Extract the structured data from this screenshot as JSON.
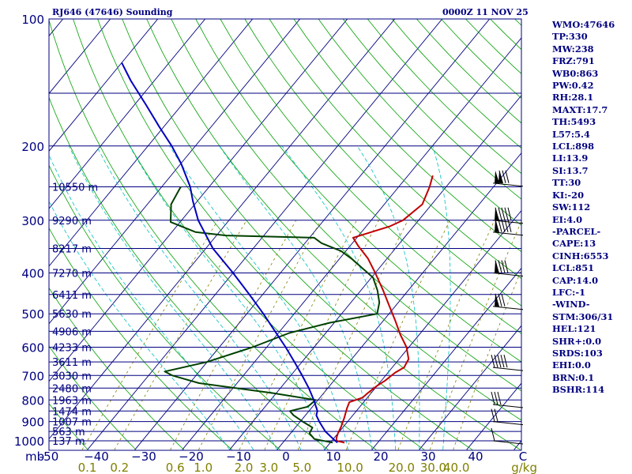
{
  "header": {
    "station": "RJ646 (47646) Sounding",
    "valid_time": "0000Z 11 NOV 25"
  },
  "indices": [
    "WMO:47646",
    "TP:330",
    "MW:238",
    "FRZ:791",
    "WB0:863",
    "PW:0.42",
    "RH:28.1",
    "MAXT:17.7",
    "TH:5493",
    "L57:5.4",
    "LCL:898",
    "LI:13.9",
    "SI:13.7",
    "TT:30",
    "KI:-20",
    "SW:112",
    "EI:4.0",
    "-PARCEL-",
    "CAPE:13",
    "CINH:6553",
    "LCL:851",
    "CAP:14.0",
    "LFC:-1",
    "-WIND-",
    "STM:306/31",
    "HEL:121",
    "SHR+:0.0",
    "SRDS:103",
    "EHI:0.0",
    "BRN:0.1",
    "BSHR:114"
  ],
  "colors": {
    "background": "#ffffff",
    "isobar": "#000080",
    "isotherm": "#000080",
    "dry_adiabat": "#00a000",
    "moist_adiabat": "#00c0c0",
    "mixing_ratio": "#808000",
    "temperature": "#c00000",
    "dewpoint": "#004000",
    "wetbulb_parcel": "#0000c0",
    "label_blue": "#000080",
    "label_olive": "#808000"
  },
  "chart_data": {
    "type": "skew-t",
    "title": "RJ646 (47646) Sounding",
    "xlabel": "",
    "ylabel": "mb",
    "x_unit": "C",
    "y_scale": "log",
    "ylim_mb": [
      1000,
      100
    ],
    "xlim_c": [
      -50,
      50
    ],
    "pressure_ticks": [
      {
        "p": 100,
        "label": "100"
      },
      {
        "p": 200,
        "label": "200"
      },
      {
        "p": 300,
        "label": "300"
      },
      {
        "p": 400,
        "label": "400"
      },
      {
        "p": 500,
        "label": "500"
      },
      {
        "p": 600,
        "label": "600"
      },
      {
        "p": 700,
        "label": "700"
      },
      {
        "p": 800,
        "label": "800"
      },
      {
        "p": 900,
        "label": "900"
      },
      {
        "p": 1000,
        "label": "1000"
      }
    ],
    "temperature_ticks": [
      {
        "t": -50,
        "label": "-50"
      },
      {
        "t": -40,
        "label": "−40"
      },
      {
        "t": -30,
        "label": "−30"
      },
      {
        "t": -20,
        "label": "−20"
      },
      {
        "t": -10,
        "label": "−10"
      },
      {
        "t": 0,
        "label": "0"
      },
      {
        "t": 10,
        "label": "10"
      },
      {
        "t": 20,
        "label": "20"
      },
      {
        "t": 30,
        "label": "30"
      },
      {
        "t": 40,
        "label": "40"
      },
      {
        "t": 50,
        "label": "C"
      }
    ],
    "axis_unit_label": "mb",
    "mixing_ratio_labels": [
      {
        "w": 0.1,
        "label": "0.1"
      },
      {
        "w": 0.2,
        "label": "0.2"
      },
      {
        "w": 0.6,
        "label": "0.6"
      },
      {
        "w": 1.0,
        "label": "1.0"
      },
      {
        "w": 2.0,
        "label": "2.0"
      },
      {
        "w": 3.0,
        "label": "3.0"
      },
      {
        "w": 5.0,
        "label": "5.0"
      },
      {
        "w": 10.0,
        "label": "10.0"
      },
      {
        "w": 20.0,
        "label": "20.0"
      },
      {
        "w": 30.0,
        "label": "30.0"
      },
      {
        "w": 40.0,
        "label": "40.0"
      }
    ],
    "mixing_ratio_unit": "g/kg",
    "height_labels": [
      {
        "p": 250,
        "label": "10550 m"
      },
      {
        "p": 300,
        "label": "9290 m"
      },
      {
        "p": 350,
        "label": "8217 m"
      },
      {
        "p": 400,
        "label": "7270 m"
      },
      {
        "p": 450,
        "label": "6411 m"
      },
      {
        "p": 500,
        "label": "5630 m"
      },
      {
        "p": 550,
        "label": "4906 m"
      },
      {
        "p": 600,
        "label": "4233 m"
      },
      {
        "p": 650,
        "label": "3611 m"
      },
      {
        "p": 700,
        "label": "3030 m"
      },
      {
        "p": 750,
        "label": "2480 m"
      },
      {
        "p": 800,
        "label": "1963 m"
      },
      {
        "p": 850,
        "label": "1474 m"
      },
      {
        "p": 900,
        "label": "1007 m"
      },
      {
        "p": 950,
        "label": "563 m"
      },
      {
        "p": 1000,
        "label": "137 m"
      }
    ],
    "series": [
      {
        "key": "temperature",
        "points": [
          [
            1010,
            13.0
          ],
          [
            1000,
            11.0
          ],
          [
            985,
            10.5
          ],
          [
            960,
            10.0
          ],
          [
            925,
            9.5
          ],
          [
            900,
            9.0
          ],
          [
            880,
            8.6
          ],
          [
            860,
            8.1
          ],
          [
            835,
            7.5
          ],
          [
            810,
            7.0
          ],
          [
            790,
            9.0
          ],
          [
            770,
            9.3
          ],
          [
            740,
            10.0
          ],
          [
            720,
            10.8
          ],
          [
            690,
            11.5
          ],
          [
            670,
            12.5
          ],
          [
            640,
            12.0
          ],
          [
            600,
            9.5
          ],
          [
            560,
            6.0
          ],
          [
            520,
            2.6
          ],
          [
            480,
            -1.2
          ],
          [
            440,
            -5.3
          ],
          [
            400,
            -10.0
          ],
          [
            370,
            -14.0
          ],
          [
            345,
            -18.3
          ],
          [
            330,
            -20.8
          ],
          [
            310,
            -15.0
          ],
          [
            300,
            -13.3
          ],
          [
            275,
            -12.0
          ],
          [
            250,
            -13.5
          ],
          [
            235,
            -14.8
          ]
        ]
      },
      {
        "key": "dewpoint",
        "points": [
          [
            1010,
            10.5
          ],
          [
            990,
            6.0
          ],
          [
            960,
            4.0
          ],
          [
            930,
            3.6
          ],
          [
            900,
            0.5
          ],
          [
            870,
            -2.5
          ],
          [
            850,
            -4.0
          ],
          [
            830,
            -1.0
          ],
          [
            800,
            -0.5
          ],
          [
            770,
            -11.0
          ],
          [
            730,
            -28.0
          ],
          [
            700,
            -35.0
          ],
          [
            685,
            -37.3
          ],
          [
            650,
            -30.0
          ],
          [
            600,
            -23.0
          ],
          [
            555,
            -17.7
          ],
          [
            525,
            -11.0
          ],
          [
            500,
            -2.5
          ],
          [
            470,
            -4.0
          ],
          [
            440,
            -6.5
          ],
          [
            410,
            -9.7
          ],
          [
            390,
            -13.5
          ],
          [
            370,
            -17.5
          ],
          [
            355,
            -21.0
          ],
          [
            340,
            -26.5
          ],
          [
            330,
            -29.0
          ],
          [
            326,
            -48.0
          ],
          [
            320,
            -55.0
          ],
          [
            303,
            -62.0
          ],
          [
            275,
            -65.0
          ],
          [
            250,
            -66.0
          ]
        ]
      },
      {
        "key": "wetbulb_parcel",
        "points": [
          [
            1010,
            11.5
          ],
          [
            990,
            10.0
          ],
          [
            950,
            7.0
          ],
          [
            900,
            4.0
          ],
          [
            870,
            2.3
          ],
          [
            850,
            1.8
          ],
          [
            800,
            -0.9
          ],
          [
            750,
            -4.0
          ],
          [
            700,
            -7.6
          ],
          [
            650,
            -11.6
          ],
          [
            600,
            -16.0
          ],
          [
            550,
            -21.0
          ],
          [
            500,
            -26.5
          ],
          [
            450,
            -32.8
          ],
          [
            400,
            -40.0
          ],
          [
            350,
            -48.5
          ],
          [
            300,
            -56.5
          ],
          [
            270,
            -61.0
          ],
          [
            250,
            -64.0
          ],
          [
            220,
            -70.0
          ],
          [
            200,
            -75.0
          ],
          [
            180,
            -81.0
          ],
          [
            160,
            -87.5
          ],
          [
            140,
            -95.0
          ],
          [
            127,
            -100.0
          ]
        ]
      }
    ],
    "wind_barbs": [
      {
        "p": 245,
        "pennants": 2,
        "barbs": 3
      },
      {
        "p": 300,
        "pennants": 1,
        "barbs": 5
      },
      {
        "p": 320,
        "pennants": 1,
        "barbs": 5
      },
      {
        "p": 400,
        "pennants": 1,
        "barbs": 4
      },
      {
        "p": 480,
        "pennants": 1,
        "barbs": 3
      },
      {
        "p": 670,
        "pennants": 0,
        "barbs": 5
      },
      {
        "p": 820,
        "pennants": 0,
        "barbs": 3
      },
      {
        "p": 900,
        "pennants": 0,
        "barbs": 2
      },
      {
        "p": 1000,
        "pennants": 0,
        "barbs": 1
      }
    ],
    "grid": true,
    "legend": "none"
  }
}
